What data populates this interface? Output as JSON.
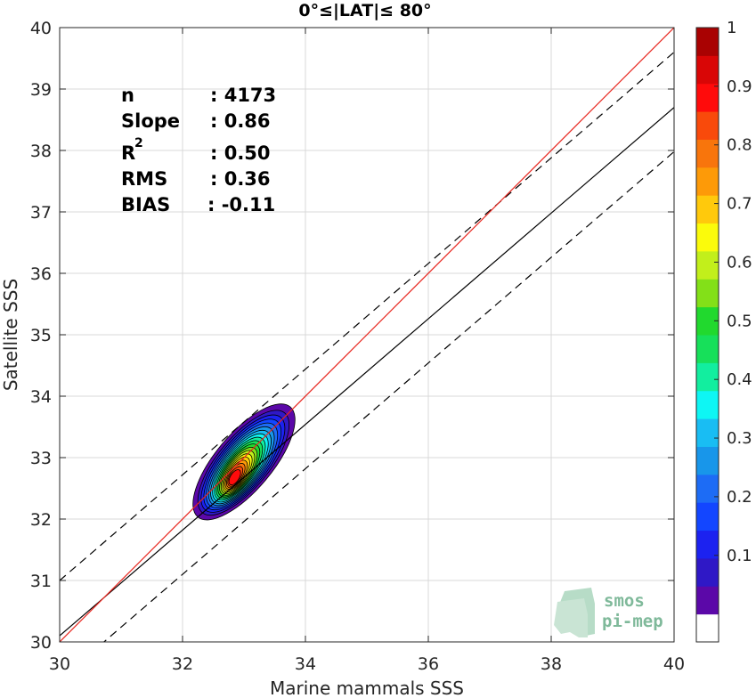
{
  "chart_data": {
    "type": "density_scatter",
    "title": "0°≤|LAT|≤ 80°",
    "xlabel": "Marine mammals SSS",
    "ylabel": "Satellite SSS",
    "xlim": [
      30,
      40
    ],
    "ylim": [
      30,
      40
    ],
    "xticks": [
      "30",
      "32",
      "34",
      "36",
      "38",
      "40"
    ],
    "yticks": [
      "30",
      "31",
      "32",
      "33",
      "34",
      "35",
      "36",
      "37",
      "38",
      "39",
      "40"
    ],
    "grid": true,
    "stats": [
      {
        "key": "n",
        "value": ": 4173"
      },
      {
        "key": "Slope",
        "value": ": 0.86"
      },
      {
        "key": "R",
        "sup": "2",
        "value": ": 0.50"
      },
      {
        "key": "RMS",
        "value": ": 0.36"
      },
      {
        "key": "BIAS",
        "value": ": -0.11"
      }
    ],
    "lines": {
      "identity": {
        "slope": 1,
        "intercept": 0,
        "color": "#e8261e"
      },
      "fit": {
        "slope": 0.86,
        "intercept": 4.3,
        "color": "#000000"
      },
      "fit_upper": {
        "slope": 0.86,
        "intercept": 5.2,
        "style": "dashed"
      },
      "fit_lower": {
        "slope": 0.86,
        "intercept": 3.58,
        "style": "dashed"
      }
    },
    "density_contours": {
      "peak": [
        32.85,
        32.68
      ],
      "levels": [
        0.05,
        0.1,
        0.15,
        0.2,
        0.25,
        0.3,
        0.35,
        0.4,
        0.45,
        0.5,
        0.55,
        0.6,
        0.65,
        0.7,
        0.75,
        0.8,
        0.85,
        0.9,
        0.95
      ]
    },
    "colorbar": {
      "range": [
        0,
        1
      ],
      "ticks": [
        "0.1",
        "0.2",
        "0.3",
        "0.4",
        "0.5",
        "0.6",
        "0.7",
        "0.8",
        "0.9",
        "1"
      ],
      "colors": [
        "#ffffff",
        "#5b08a8",
        "#2f18c6",
        "#1c22f0",
        "#1346ff",
        "#1d6cf5",
        "#1896ea",
        "#19bdf3",
        "#0ef6f4",
        "#12ee9f",
        "#17e05a",
        "#21d92e",
        "#83e018",
        "#c2ef1b",
        "#fbfb0b",
        "#ffc90c",
        "#fd9a08",
        "#f8750c",
        "#f94a0b",
        "#ff0b0b",
        "#d90606",
        "#a90202"
      ]
    }
  },
  "logo": {
    "line1": "smos",
    "line2": "pi-mep"
  }
}
